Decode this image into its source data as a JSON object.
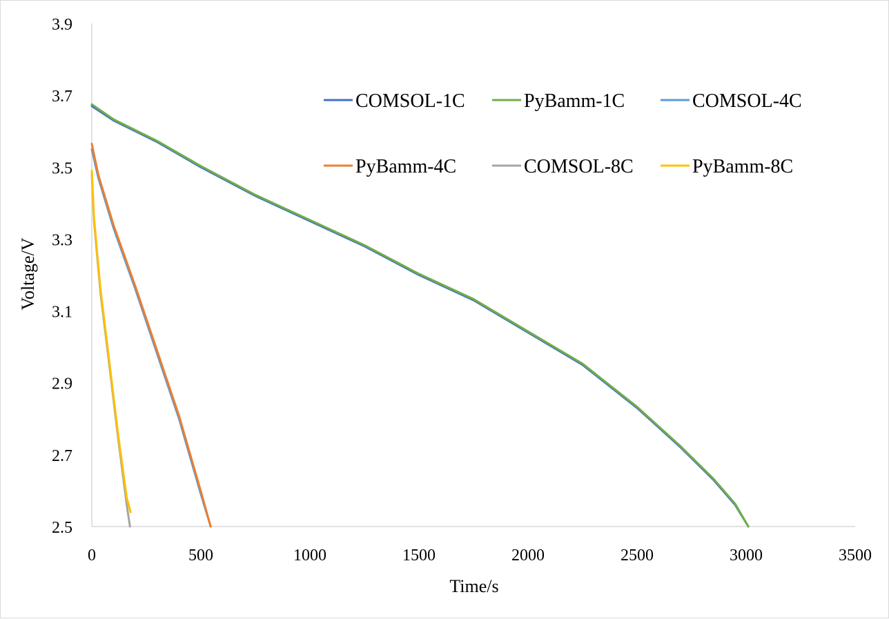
{
  "chart_data": {
    "type": "line",
    "title": "",
    "xlabel": "Time/s",
    "ylabel": "Voltage/V",
    "xlim": [
      0,
      3500
    ],
    "ylim": [
      2.5,
      3.9
    ],
    "xticks": [
      0,
      500,
      1000,
      1500,
      2000,
      2500,
      3000,
      3500
    ],
    "yticks": [
      2.5,
      2.7,
      2.9,
      3.1,
      3.3,
      3.5,
      3.7,
      3.9
    ],
    "ytick_labels": [
      "2.5",
      "2.7",
      "2.9",
      "3.1",
      "3.3",
      "3.5",
      "3.7",
      "3.9"
    ],
    "grid": false,
    "legend_position": "top-right",
    "series": [
      {
        "name": "COMSOL-1C",
        "color": "#4472C4",
        "x": [
          0,
          100,
          300,
          500,
          750,
          1000,
          1250,
          1500,
          1750,
          2000,
          2250,
          2500,
          2700,
          2850,
          2950,
          3010
        ],
        "y": [
          3.67,
          3.63,
          3.57,
          3.5,
          3.42,
          3.35,
          3.28,
          3.2,
          3.13,
          3.04,
          2.95,
          2.83,
          2.72,
          2.63,
          2.56,
          2.5
        ]
      },
      {
        "name": "PyBamm-1C",
        "color": "#70AD47",
        "x": [
          0,
          100,
          300,
          500,
          750,
          1000,
          1250,
          1500,
          1750,
          2000,
          2250,
          2500,
          2700,
          2850,
          2950,
          3010
        ],
        "y": [
          3.675,
          3.633,
          3.573,
          3.503,
          3.423,
          3.353,
          3.283,
          3.203,
          3.133,
          3.043,
          2.953,
          2.833,
          2.723,
          2.633,
          2.563,
          2.5
        ]
      },
      {
        "name": "COMSOL-4C",
        "color": "#5B9BD5",
        "x": [
          0,
          30,
          100,
          200,
          300,
          400,
          500,
          545
        ],
        "y": [
          3.55,
          3.47,
          3.33,
          3.16,
          2.98,
          2.8,
          2.59,
          2.5
        ]
      },
      {
        "name": "PyBamm-4C",
        "color": "#ED7D31",
        "x": [
          0,
          30,
          100,
          200,
          300,
          400,
          500,
          545
        ],
        "y": [
          3.565,
          3.478,
          3.338,
          3.168,
          2.988,
          2.808,
          2.598,
          2.5
        ]
      },
      {
        "name": "COMSOL-8C",
        "color": "#A5A5A5",
        "x": [
          0,
          10,
          40,
          80,
          120,
          160,
          175
        ],
        "y": [
          3.48,
          3.35,
          3.15,
          2.95,
          2.75,
          2.56,
          2.5
        ]
      },
      {
        "name": "PyBamm-8C",
        "color": "#FFC000",
        "x": [
          0,
          10,
          40,
          80,
          120,
          160,
          178
        ],
        "y": [
          3.49,
          3.36,
          3.16,
          2.96,
          2.76,
          2.58,
          2.54
        ]
      }
    ]
  }
}
